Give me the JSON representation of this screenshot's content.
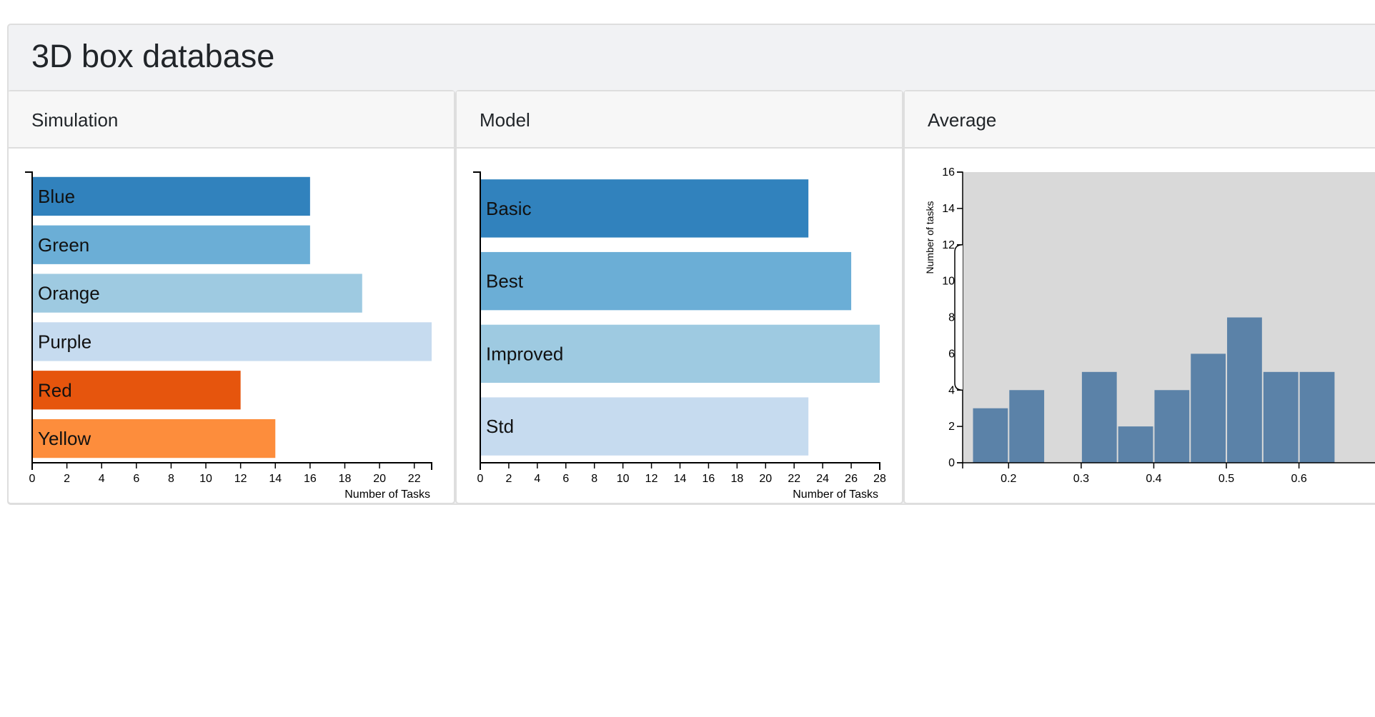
{
  "app": {
    "title": "3D box database"
  },
  "panels": [
    {
      "title": "Simulation"
    },
    {
      "title": "Model"
    },
    {
      "title": "Average"
    }
  ],
  "chart_data": [
    {
      "type": "bar",
      "orientation": "horizontal",
      "categories": [
        "Blue",
        "Green",
        "Orange",
        "Purple",
        "Red",
        "Yellow"
      ],
      "values": [
        16,
        16,
        19,
        23,
        12,
        14
      ],
      "colors": [
        "#3182bd",
        "#6baed6",
        "#9ecae1",
        "#c6dbef",
        "#e6550d",
        "#fd8d3c"
      ],
      "xlabel": "Number of Tasks",
      "xlim": [
        0,
        23
      ],
      "xticks": [
        0,
        2,
        4,
        6,
        8,
        10,
        12,
        14,
        16,
        18,
        20,
        22
      ]
    },
    {
      "type": "bar",
      "orientation": "horizontal",
      "categories": [
        "Basic",
        "Best",
        "Improved",
        "Std"
      ],
      "values": [
        23,
        26,
        28,
        23
      ],
      "colors": [
        "#3182bd",
        "#6baed6",
        "#9ecae1",
        "#c6dbef"
      ],
      "xlabel": "Number of Tasks",
      "xlim": [
        0,
        28
      ],
      "xticks": [
        0,
        2,
        4,
        6,
        8,
        10,
        12,
        14,
        16,
        18,
        20,
        22,
        24,
        26,
        28
      ]
    },
    {
      "type": "bar",
      "subtype": "histogram",
      "bin_width": 0.05,
      "bin_starts": [
        0.15,
        0.2,
        0.25,
        0.3,
        0.35,
        0.4,
        0.45,
        0.5,
        0.55,
        0.6
      ],
      "values": [
        3,
        4,
        0,
        5,
        2,
        4,
        6,
        8,
        5,
        5
      ],
      "color": "#5b82a8",
      "background": "#d9d9d9",
      "ylabel": "Number of tasks",
      "ylim": [
        0,
        16
      ],
      "yticks": [
        0,
        2,
        4,
        6,
        8,
        10,
        12,
        14,
        16
      ],
      "xticks": [
        0.2,
        0.3,
        0.4,
        0.5,
        0.6
      ],
      "brush_range": [
        4,
        12
      ]
    }
  ]
}
